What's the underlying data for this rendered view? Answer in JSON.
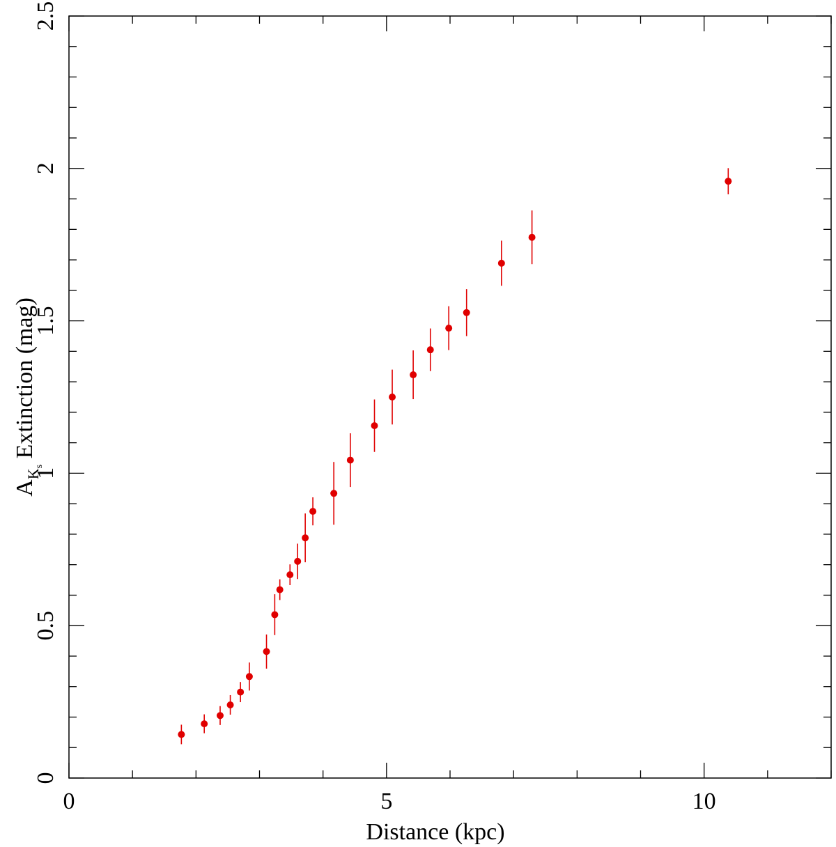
{
  "chart_data": {
    "type": "scatter",
    "title": "",
    "xlabel": "Distance (kpc)",
    "ylabel": {
      "prefix": "A",
      "sub": "K",
      "subsub": "s",
      "suffix": " Extinction (mag)"
    },
    "xlim": [
      0,
      12
    ],
    "ylim": [
      0,
      2.5
    ],
    "x_ticks": [
      {
        "value": 0,
        "label": "0"
      },
      {
        "value": 5,
        "label": "5"
      },
      {
        "value": 10,
        "label": "10"
      }
    ],
    "y_ticks": [
      {
        "value": 0,
        "label": "0"
      },
      {
        "value": 0.5,
        "label": "0.5"
      },
      {
        "value": 1,
        "label": "1"
      },
      {
        "value": 1.5,
        "label": "1.5"
      },
      {
        "value": 2,
        "label": "2"
      },
      {
        "value": 2.5,
        "label": "2.5"
      }
    ],
    "x_minor_step": 1,
    "y_minor_step": 0.1,
    "grid": false,
    "marker_color": "#e00000",
    "series": [
      {
        "points": [
          {
            "x": 1.77,
            "y": 0.143,
            "err": 0.032
          },
          {
            "x": 2.13,
            "y": 0.178,
            "err": 0.031
          },
          {
            "x": 2.38,
            "y": 0.205,
            "err": 0.031
          },
          {
            "x": 2.54,
            "y": 0.24,
            "err": 0.032
          },
          {
            "x": 2.7,
            "y": 0.282,
            "err": 0.033
          },
          {
            "x": 2.84,
            "y": 0.333,
            "err": 0.046
          },
          {
            "x": 3.11,
            "y": 0.415,
            "err": 0.056
          },
          {
            "x": 3.24,
            "y": 0.536,
            "err": 0.067
          },
          {
            "x": 3.32,
            "y": 0.618,
            "err": 0.034
          },
          {
            "x": 3.48,
            "y": 0.667,
            "err": 0.034
          },
          {
            "x": 3.6,
            "y": 0.711,
            "err": 0.058
          },
          {
            "x": 3.72,
            "y": 0.788,
            "err": 0.08
          },
          {
            "x": 3.84,
            "y": 0.875,
            "err": 0.046
          },
          {
            "x": 4.17,
            "y": 0.934,
            "err": 0.103
          },
          {
            "x": 4.43,
            "y": 1.043,
            "err": 0.088
          },
          {
            "x": 4.81,
            "y": 1.156,
            "err": 0.086
          },
          {
            "x": 5.09,
            "y": 1.25,
            "err": 0.09
          },
          {
            "x": 5.42,
            "y": 1.323,
            "err": 0.08
          },
          {
            "x": 5.69,
            "y": 1.405,
            "err": 0.07
          },
          {
            "x": 5.98,
            "y": 1.476,
            "err": 0.072
          },
          {
            "x": 6.26,
            "y": 1.527,
            "err": 0.077
          },
          {
            "x": 6.81,
            "y": 1.689,
            "err": 0.074
          },
          {
            "x": 7.29,
            "y": 1.774,
            "err": 0.088
          },
          {
            "x": 10.38,
            "y": 1.958,
            "err": 0.043
          }
        ]
      }
    ]
  }
}
